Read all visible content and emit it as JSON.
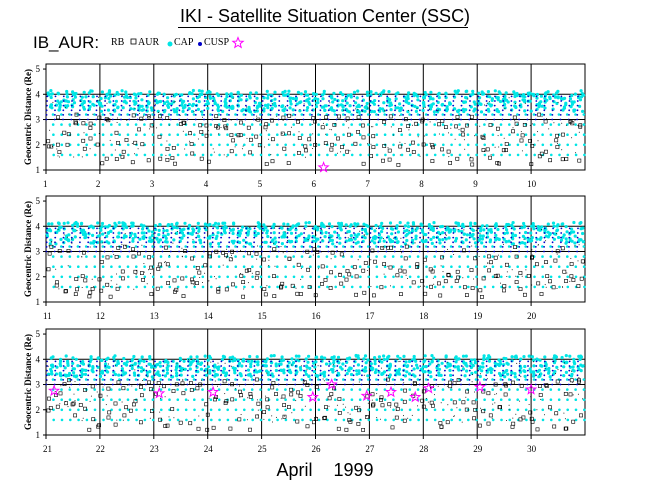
{
  "title": "IKI - Satellite Situation Center (SSC)",
  "prefix": "IB_AUR:",
  "legend": [
    {
      "label": "RB",
      "symbol": "none",
      "color": "#000000"
    },
    {
      "label": "AUR",
      "symbol": "open-square",
      "color": "#000000"
    },
    {
      "label": "CAP",
      "symbol": "filled-dot",
      "color": "#00e5e5"
    },
    {
      "label": "CUSP",
      "symbol": "filled-dot-small",
      "color": "#0000c8"
    },
    {
      "label": "",
      "symbol": "open-star",
      "color": "#ff00ff"
    }
  ],
  "footer": {
    "month": "April",
    "year": "1999"
  },
  "colors": {
    "cap": "#00e5e5",
    "cusp": "#0000c8",
    "aur": "#000000",
    "rb": "#000000",
    "star": "#ff00ff",
    "grid": "#000000"
  },
  "chart_data": {
    "type": "scatter",
    "ylabel": "Geocentric Distance (Re)",
    "ylim": [
      1,
      5.2
    ],
    "yticks": [
      1,
      2,
      3,
      4,
      5
    ],
    "gridlines_y": [
      3,
      4
    ],
    "description_series": [
      "RB",
      "AUR",
      "CAP",
      "CUSP"
    ],
    "panels": [
      {
        "day_start": 1,
        "day_ticks": [
          "1",
          "2",
          "3",
          "4",
          "5",
          "6",
          "7",
          "8",
          "9",
          "10"
        ],
        "stars": [
          {
            "day": 6.15,
            "y": 1.1
          }
        ]
      },
      {
        "day_start": 11,
        "day_ticks": [
          "11",
          "12",
          "13",
          "14",
          "15",
          "16",
          "17",
          "18",
          "19",
          "20"
        ],
        "stars": []
      },
      {
        "day_start": 21,
        "day_ticks": [
          "21",
          "22",
          "23",
          "24",
          "25",
          "26",
          "27",
          "28",
          "29",
          "30"
        ],
        "stars": [
          {
            "day": 21.15,
            "y": 2.75
          },
          {
            "day": 23.1,
            "y": 2.65
          },
          {
            "day": 24.1,
            "y": 2.7
          },
          {
            "day": 25.95,
            "y": 2.5
          },
          {
            "day": 26.3,
            "y": 3.0
          },
          {
            "day": 26.95,
            "y": 2.55
          },
          {
            "day": 27.4,
            "y": 2.7
          },
          {
            "day": 27.85,
            "y": 2.5
          },
          {
            "day": 28.1,
            "y": 2.85
          },
          {
            "day": 29.05,
            "y": 2.9
          },
          {
            "day": 30.0,
            "y": 2.8
          }
        ]
      }
    ],
    "envelope_max": 4.15,
    "orbits_per_day": 6.5
  }
}
